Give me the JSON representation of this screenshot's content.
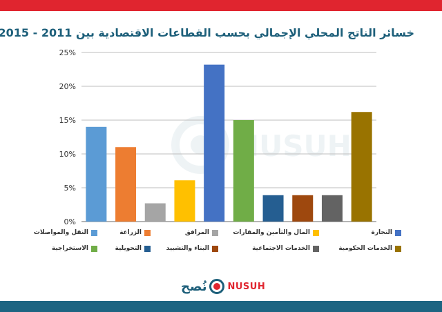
{
  "header": {
    "title": "خسائر الناتج المحلي الإجمالي بحسب القطاعات الاقتصادية بين 2011 - 2015"
  },
  "brand": {
    "arabic_name": "نُصح",
    "latin_name": "NUSUH",
    "watermark": "NUSUH"
  },
  "colors": {
    "top_bar": "#e0252f",
    "bottom_bar": "#1d6582",
    "title": "#1d5f7a"
  },
  "chart_data": {
    "type": "bar",
    "title": "خسائر الناتج المحلي الإجمالي بحسب القطاعات الاقتصادية بين 2011 - 2015",
    "xlabel": "",
    "ylabel": "",
    "ylim": [
      0,
      25
    ],
    "yticks": [
      0,
      5,
      10,
      15,
      20,
      25
    ],
    "ytick_labels": [
      "0%",
      "5%",
      "10%",
      "15%",
      "20%",
      "25%"
    ],
    "grid": true,
    "legend_position": "bottom",
    "categories": [
      "النقل والمواصلات",
      "الزراعة",
      "المرافق",
      "المال والتأمين والمقارات",
      "التجارة",
      "الاستخراجية",
      "التحويلية",
      "البناء والتشييد",
      "الخدمات الاجتماعية",
      "الخدمات الحكومية"
    ],
    "values": [
      14,
      11,
      2.7,
      6.1,
      23.2,
      15,
      3.9,
      3.9,
      3.9,
      16.2
    ],
    "colors": [
      "#5b9bd5",
      "#ed7d31",
      "#a5a5a5",
      "#ffc000",
      "#4472c4",
      "#70ad47",
      "#255e91",
      "#9e480e",
      "#636363",
      "#997300"
    ]
  }
}
